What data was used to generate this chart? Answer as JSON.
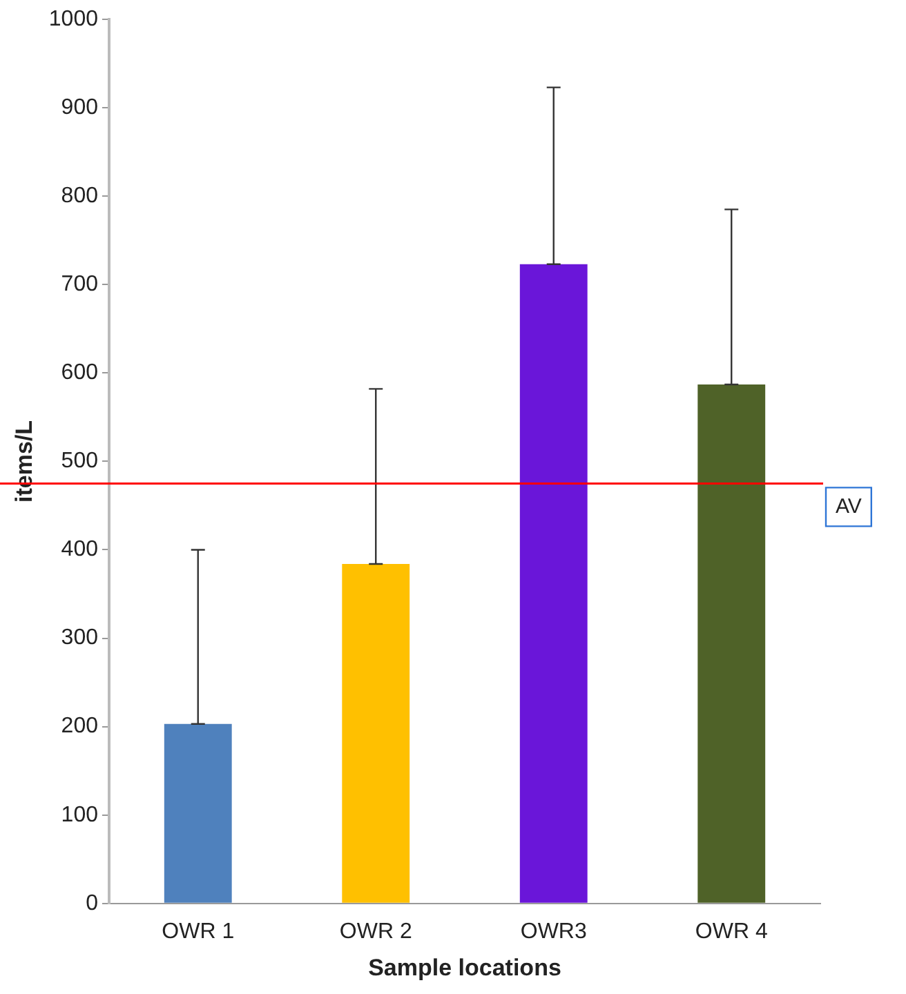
{
  "chart_data": {
    "type": "bar",
    "xlabel": "Sample locations",
    "ylabel": "items/L",
    "categories": [
      "OWR 1",
      "OWR 2",
      "OWR3",
      "OWR 4"
    ],
    "values": [
      203,
      384,
      723,
      587
    ],
    "colors": [
      "#4f81bd",
      "#ffc000",
      "#6a16d9",
      "#4f6228"
    ],
    "errors": [
      [
        203,
        400
      ],
      [
        384,
        582
      ],
      [
        723,
        923
      ],
      [
        587,
        785
      ]
    ],
    "ylim": [
      0,
      1000
    ],
    "yticks": [
      0,
      100,
      200,
      300,
      400,
      500,
      600,
      700,
      800,
      900,
      1000
    ],
    "grid": false,
    "legend": false,
    "ref_lines": [
      {
        "axis": "y",
        "value": 475,
        "label": "AV",
        "color": "#ff0000"
      }
    ]
  }
}
